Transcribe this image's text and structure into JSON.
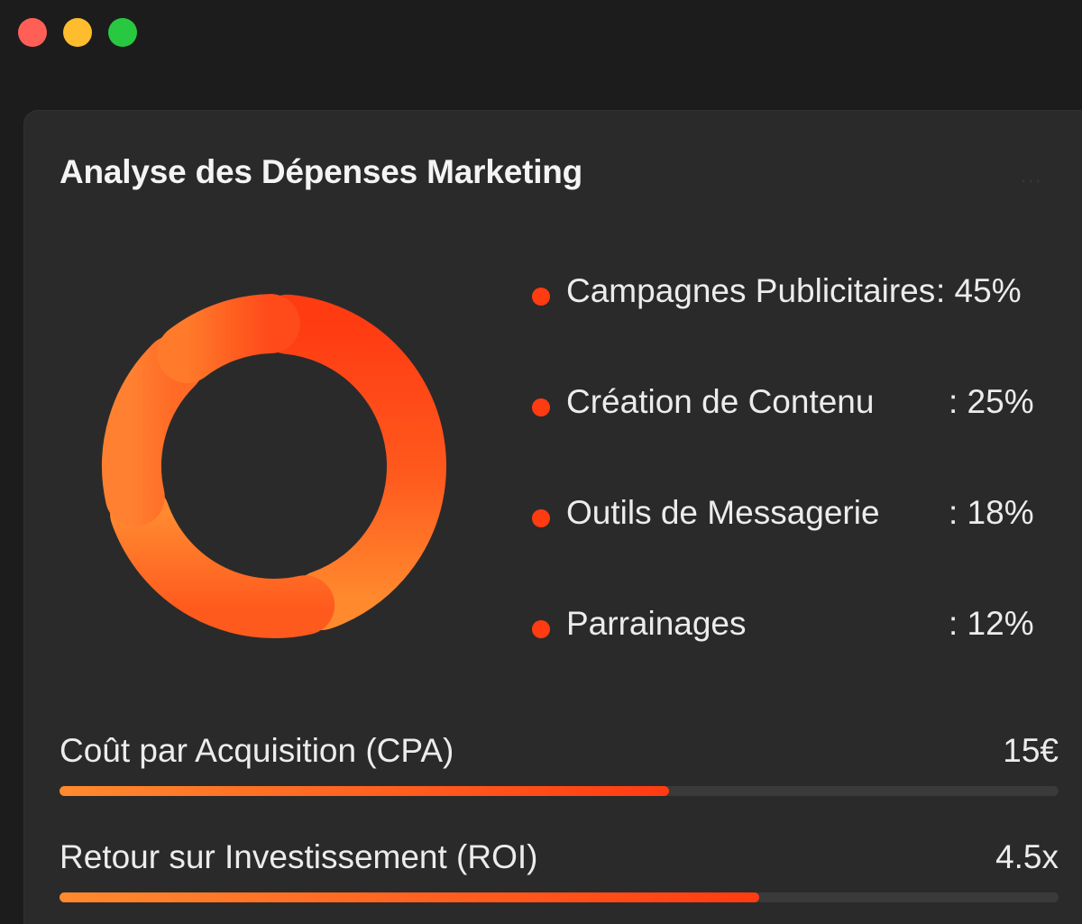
{
  "window": {
    "controls": [
      {
        "name": "close",
        "color": "#ff5f57"
      },
      {
        "name": "minimize",
        "color": "#febc2e"
      },
      {
        "name": "maximize",
        "color": "#28c840"
      }
    ]
  },
  "card": {
    "title": "Analyse des Dépenses Marketing",
    "more_icon": "more-horizontal-icon",
    "more_glyph": "..."
  },
  "chart_data": {
    "type": "pie",
    "title": "Analyse des Dépenses Marketing",
    "series": [
      {
        "name": "Campagnes Publicitaires",
        "value": 45
      },
      {
        "name": "Création de Contenu",
        "value": 25
      },
      {
        "name": "Outils de Messagerie",
        "value": 18
      },
      {
        "name": "Parrainages",
        "value": 12
      }
    ],
    "colors": {
      "start": "#ff8a2e",
      "end": "#ff3b12",
      "bullet": "#ff3b12"
    },
    "legend_placement": "right"
  },
  "legend": [
    {
      "label": "Campagnes Publicitaires",
      "value": ": 45%"
    },
    {
      "label": "Création de Contenu",
      "value": ": 25%"
    },
    {
      "label": "Outils de Messagerie",
      "value": ": 18%"
    },
    {
      "label": "Parrainages",
      "value": ": 12%"
    }
  ],
  "metrics": [
    {
      "label": "Coût par Acquisition (CPA)",
      "value": "15€",
      "progress": 0.61
    },
    {
      "label": "Retour sur Investissement (ROI)",
      "value": "4.5x",
      "progress": 0.7
    }
  ]
}
